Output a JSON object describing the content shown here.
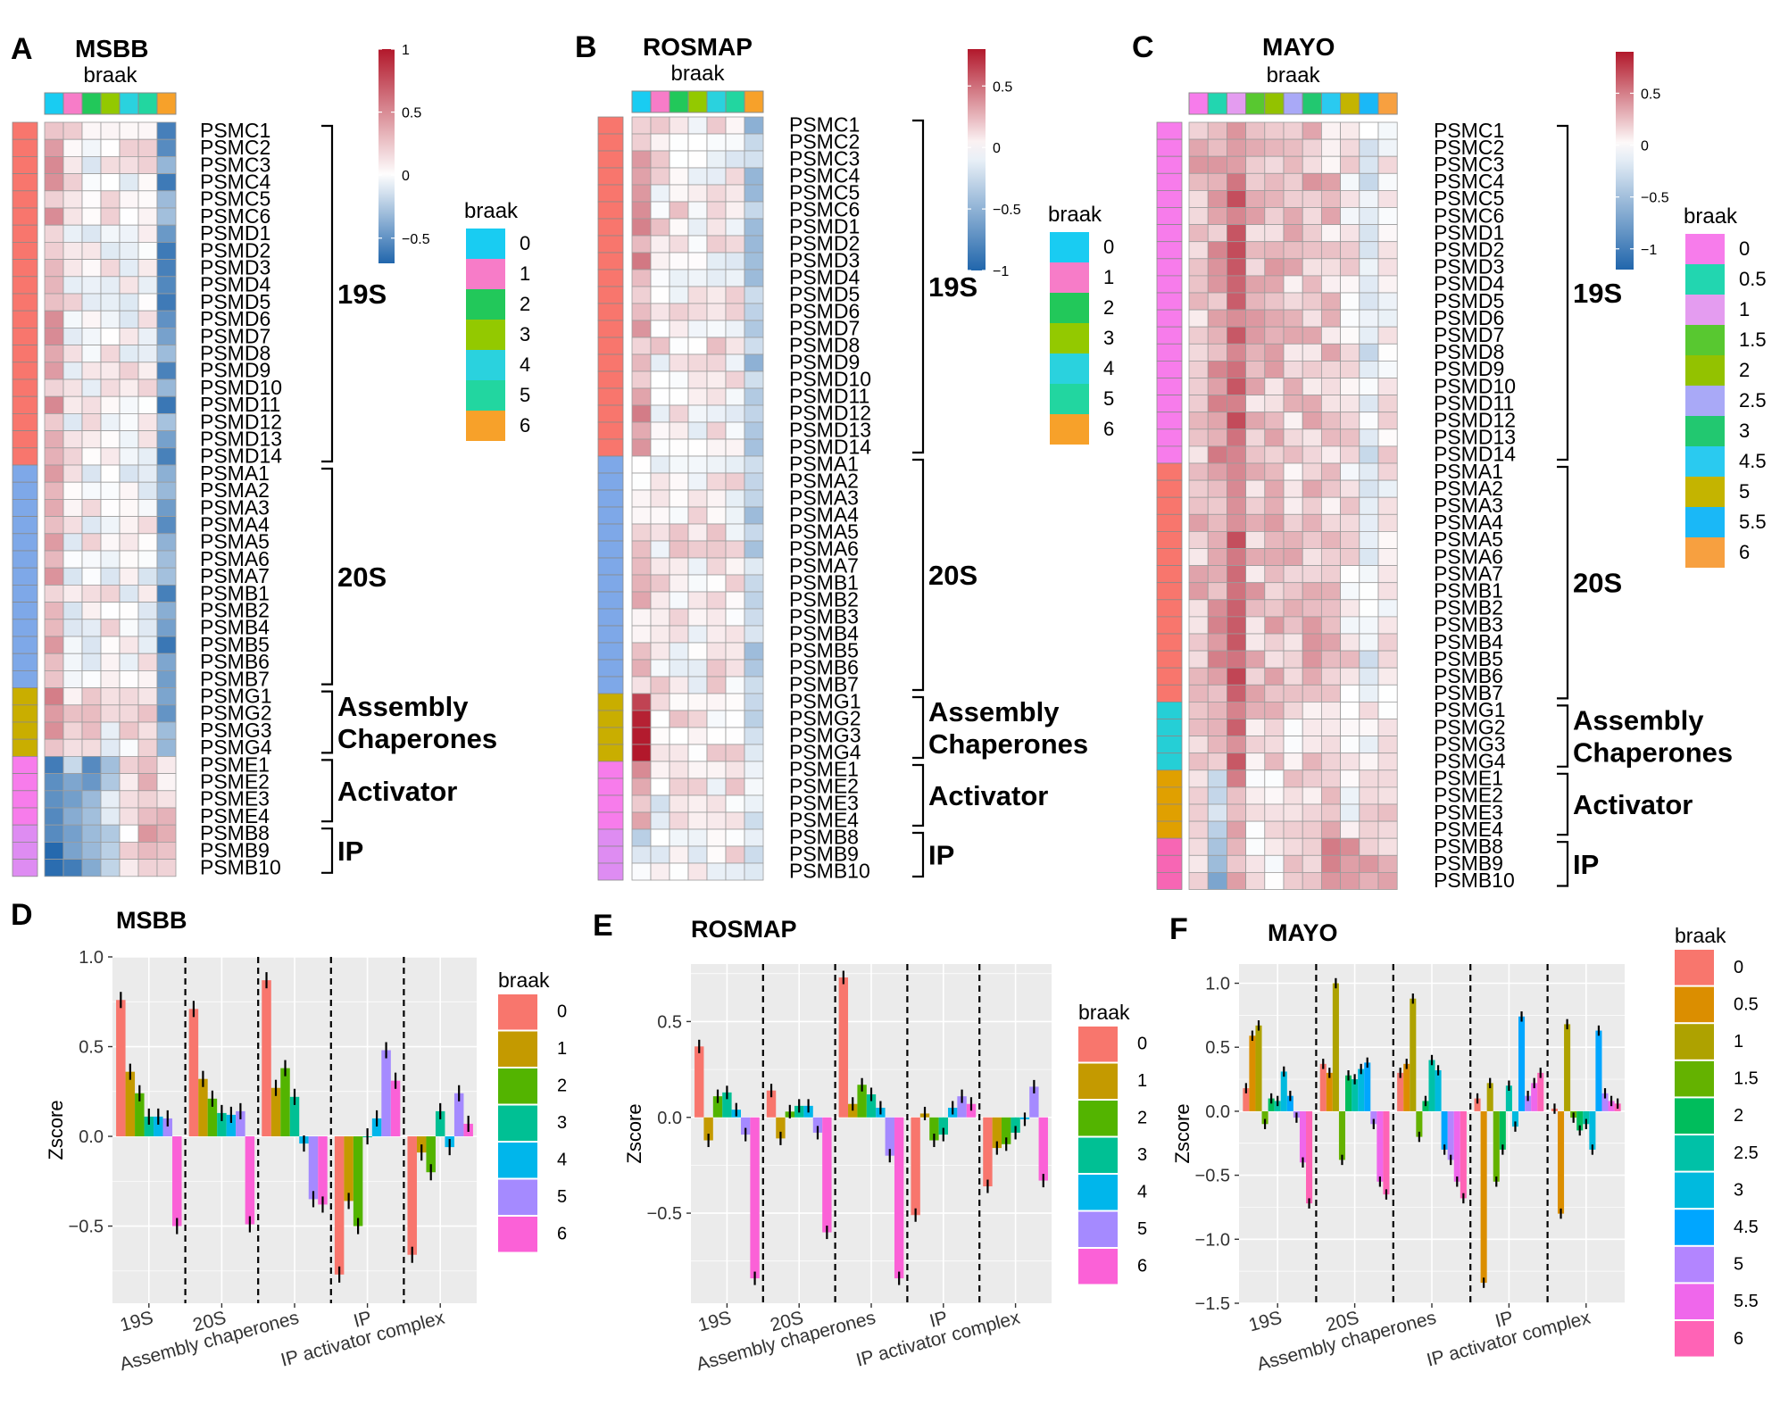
{
  "figure": {
    "heatmap_order_note": "rows listed in display order",
    "colorbar_label": "braak",
    "zscore_label": "Zscore",
    "legend_title": "braak"
  },
  "chart_data": [
    {
      "type": "heatmap",
      "panel": "A",
      "title": "MSBB",
      "column_annotation_title": "braak",
      "columns": [
        "0",
        "1",
        "2",
        "3",
        "4",
        "5",
        "6"
      ],
      "colorbar": {
        "range": [
          -0.7,
          1.0
        ],
        "ticks": [
          1,
          0.5,
          0,
          -0.5
        ],
        "tick_labels": [
          "1",
          "0.5",
          "0",
          "−0.5"
        ]
      },
      "rows": [
        "PSMC1",
        "PSMC2",
        "PSMC3",
        "PSMC4",
        "PSMC5",
        "PSMC6",
        "PSMD1",
        "PSMD2",
        "PSMD3",
        "PSMD4",
        "PSMD5",
        "PSMD6",
        "PSMD7",
        "PSMD8",
        "PSMD9",
        "PSMD10",
        "PSMD11",
        "PSMD12",
        "PSMD13",
        "PSMD14",
        "PSMA1",
        "PSMA2",
        "PSMA3",
        "PSMA4",
        "PSMA5",
        "PSMA6",
        "PSMA7",
        "PSMB1",
        "PSMB2",
        "PSMB4",
        "PSMB5",
        "PSMB6",
        "PSMB7",
        "PSMG1",
        "PSMG2",
        "PSMG3",
        "PSMG4",
        "PSME1",
        "PSME2",
        "PSME3",
        "PSME4",
        "PSMB8",
        "PSMB9",
        "PSMB10"
      ],
      "groups": [
        {
          "label": "19S",
          "label_lines": [
            "19S"
          ],
          "start": 0,
          "end": 19,
          "row_color": "#F8766D"
        },
        {
          "label": "20S",
          "label_lines": [
            "20S"
          ],
          "start": 20,
          "end": 32,
          "row_color": "#7EA8E8"
        },
        {
          "label": "Assembly Chaperones",
          "label_lines": [
            "Assembly",
            "Chaperones"
          ],
          "start": 33,
          "end": 36,
          "row_color": "#C9AE00"
        },
        {
          "label": "Activator",
          "label_lines": [
            "Activator"
          ],
          "start": 37,
          "end": 40,
          "row_color": "#F77CEB"
        },
        {
          "label": "IP",
          "label_lines": [
            "IP"
          ],
          "start": 41,
          "end": 43,
          "row_color": "#DE8CF2"
        }
      ],
      "group_level_profile": [
        [
          0.35,
          0.05,
          0.05,
          0.05,
          0.05,
          0.05,
          -0.45
        ],
        [
          0.3,
          0.05,
          0.05,
          0.05,
          0.0,
          0.05,
          -0.45
        ],
        [
          0.4,
          0.1,
          0.15,
          0.0,
          0.1,
          0.15,
          -0.45
        ],
        [
          -0.45,
          -0.35,
          -0.45,
          -0.2,
          0.1,
          0.2,
          0.2
        ],
        [
          -0.6,
          -0.45,
          -0.35,
          -0.1,
          0.05,
          0.3,
          0.25
        ]
      ]
    },
    {
      "type": "heatmap",
      "panel": "B",
      "title": "ROSMAP",
      "column_annotation_title": "braak",
      "columns": [
        "0",
        "1",
        "2",
        "3",
        "4",
        "5",
        "6"
      ],
      "colorbar": {
        "range": [
          -1.0,
          0.8
        ],
        "ticks": [
          0.5,
          0,
          -0.5,
          -1
        ],
        "tick_labels": [
          "0.5",
          "0",
          "−0.5",
          "−1"
        ]
      },
      "rows": [
        "PSMC1",
        "PSMC2",
        "PSMC3",
        "PSMC4",
        "PSMC5",
        "PSMC6",
        "PSMD1",
        "PSMD2",
        "PSMD3",
        "PSMD4",
        "PSMD5",
        "PSMD6",
        "PSMD7",
        "PSMD8",
        "PSMD9",
        "PSMD10",
        "PSMD11",
        "PSMD12",
        "PSMD13",
        "PSMD14",
        "PSMA1",
        "PSMA2",
        "PSMA3",
        "PSMA4",
        "PSMA5",
        "PSMA6",
        "PSMA7",
        "PSMB1",
        "PSMB2",
        "PSMB3",
        "PSMB4",
        "PSMB5",
        "PSMB6",
        "PSMB7",
        "PSMG1",
        "PSMG2",
        "PSMG3",
        "PSMG4",
        "PSME1",
        "PSME2",
        "PSME3",
        "PSME4",
        "PSMB8",
        "PSMB9",
        "PSMB10"
      ],
      "groups": [
        {
          "label": "19S",
          "label_lines": [
            "19S"
          ],
          "start": 0,
          "end": 19,
          "row_color": "#F8766D"
        },
        {
          "label": "20S",
          "label_lines": [
            "20S"
          ],
          "start": 20,
          "end": 33,
          "row_color": "#7EA8E8"
        },
        {
          "label": "Assembly Chaperones",
          "label_lines": [
            "Assembly",
            "Chaperones"
          ],
          "start": 34,
          "end": 37,
          "row_color": "#C9AE00"
        },
        {
          "label": "Activator",
          "label_lines": [
            "Activator"
          ],
          "start": 38,
          "end": 41,
          "row_color": "#F77CEB"
        },
        {
          "label": "IP",
          "label_lines": [
            "IP"
          ],
          "start": 42,
          "end": 44,
          "row_color": "#DE8CF2"
        }
      ],
      "group_level_profile": [
        [
          0.3,
          0.05,
          0.05,
          0.05,
          0.05,
          0.0,
          -0.35
        ],
        [
          0.15,
          0.05,
          0.05,
          0.05,
          0.05,
          0.05,
          -0.3
        ],
        [
          0.7,
          0.05,
          0.1,
          0.05,
          0.05,
          0.05,
          -0.25
        ],
        [
          0.25,
          -0.05,
          0.0,
          0.0,
          0.0,
          0.05,
          -0.2
        ],
        [
          -0.15,
          -0.05,
          0.0,
          0.0,
          0.0,
          0.05,
          -0.15
        ]
      ]
    },
    {
      "type": "heatmap",
      "panel": "C",
      "title": "MAYO",
      "column_annotation_title": "braak",
      "columns": [
        "0",
        "0.5",
        "1",
        "1.5",
        "2",
        "2.5",
        "3",
        "4.5",
        "5",
        "5.5",
        "6"
      ],
      "colorbar": {
        "range": [
          -1.2,
          0.9
        ],
        "ticks": [
          0.5,
          0,
          -0.5,
          -1
        ],
        "tick_labels": [
          "0.5",
          "0",
          "−0.5",
          "−1"
        ]
      },
      "rows": [
        "PSMC1",
        "PSMC2",
        "PSMC3",
        "PSMC4",
        "PSMC5",
        "PSMC6",
        "PSMD1",
        "PSMD2",
        "PSMD3",
        "PSMD4",
        "PSMD5",
        "PSMD6",
        "PSMD7",
        "PSMD8",
        "PSMD9",
        "PSMD10",
        "PSMD11",
        "PSMD12",
        "PSMD13",
        "PSMD14",
        "PSMA1",
        "PSMA2",
        "PSMA3",
        "PSMA4",
        "PSMA5",
        "PSMA6",
        "PSMA7",
        "PSMB1",
        "PSMB2",
        "PSMB3",
        "PSMB4",
        "PSMB5",
        "PSMB6",
        "PSMB7",
        "PSMG1",
        "PSMG2",
        "PSMG3",
        "PSMG4",
        "PSME1",
        "PSME2",
        "PSME3",
        "PSME4",
        "PSMB8",
        "PSMB9",
        "PSMB10"
      ],
      "groups": [
        {
          "label": "19S",
          "label_lines": [
            "19S"
          ],
          "start": 0,
          "end": 19,
          "row_color": "#F77CEB"
        },
        {
          "label": "20S",
          "label_lines": [
            "20S"
          ],
          "start": 20,
          "end": 33,
          "row_color": "#F8766D"
        },
        {
          "label": "Assembly Chaperones",
          "label_lines": [
            "Assembly",
            "Chaperones"
          ],
          "start": 34,
          "end": 37,
          "row_color": "#25CFD6"
        },
        {
          "label": "Activator",
          "label_lines": [
            "Activator"
          ],
          "start": 38,
          "end": 41,
          "row_color": "#E0A000"
        },
        {
          "label": "IP",
          "label_lines": [
            "IP"
          ],
          "start": 42,
          "end": 44,
          "row_color": "#F766B4"
        }
      ],
      "group_level_profile": [
        [
          0.25,
          0.35,
          0.55,
          0.25,
          0.25,
          0.2,
          0.25,
          0.2,
          0.1,
          -0.15,
          0.05
        ],
        [
          0.25,
          0.35,
          0.6,
          0.25,
          0.25,
          0.2,
          0.25,
          0.2,
          0.1,
          -0.1,
          0.05
        ],
        [
          0.2,
          0.2,
          0.6,
          0.15,
          0.2,
          0.1,
          0.2,
          0.15,
          0.05,
          0.0,
          0.0
        ],
        [
          0.05,
          -0.2,
          0.4,
          0.1,
          0.05,
          0.15,
          0.2,
          0.35,
          0.0,
          0.1,
          0.1
        ],
        [
          0.1,
          -0.6,
          0.35,
          0.05,
          0.05,
          0.1,
          0.2,
          0.4,
          0.3,
          0.25,
          0.25
        ]
      ]
    },
    {
      "type": "bar",
      "panel": "D",
      "title": "MSBB",
      "categories": [
        "19S",
        "20S",
        "Assembly chaperones",
        "IP",
        "IP activator complex"
      ],
      "ylabel": "Zscore",
      "ylim": [
        -0.93,
        1.0
      ],
      "yticks": [
        1.0,
        0.5,
        0.0,
        -0.5
      ],
      "ytick_labels": [
        "1.0",
        "0.5",
        "0.0",
        "−0.5"
      ],
      "legend_title": "braak",
      "series": [
        {
          "name": "0",
          "color": "#F8766D",
          "values": [
            0.76,
            0.71,
            0.87,
            -0.77,
            -0.66
          ]
        },
        {
          "name": "1",
          "color": "#C49A00",
          "values": [
            0.36,
            0.32,
            0.27,
            -0.36,
            -0.09
          ]
        },
        {
          "name": "2",
          "color": "#53B400",
          "values": [
            0.24,
            0.21,
            0.38,
            -0.5,
            -0.2
          ]
        },
        {
          "name": "3",
          "color": "#00C094",
          "values": [
            0.11,
            0.13,
            0.22,
            0.0,
            0.14
          ]
        },
        {
          "name": "4",
          "color": "#00B6EB",
          "values": [
            0.11,
            0.12,
            -0.04,
            0.1,
            -0.06
          ]
        },
        {
          "name": "5",
          "color": "#A58AFF",
          "values": [
            0.1,
            0.14,
            -0.35,
            0.48,
            0.24
          ]
        },
        {
          "name": "6",
          "color": "#FB61D7",
          "values": [
            -0.5,
            -0.49,
            -0.38,
            0.31,
            0.07
          ]
        }
      ],
      "errors": 0.045
    },
    {
      "type": "bar",
      "panel": "E",
      "title": "ROSMAP",
      "categories": [
        "19S",
        "20S",
        "Assembly chaperones",
        "IP",
        "IP activator complex"
      ],
      "ylabel": "Zscore",
      "ylim": [
        -0.97,
        0.8
      ],
      "yticks": [
        0.5,
        0.0,
        -0.5
      ],
      "ytick_labels": [
        "0.5",
        "0.0",
        "−0.5"
      ],
      "legend_title": "braak",
      "series": [
        {
          "name": "0",
          "color": "#F8766D",
          "values": [
            0.37,
            0.14,
            0.73,
            -0.51,
            -0.36
          ]
        },
        {
          "name": "1",
          "color": "#C49A00",
          "values": [
            -0.12,
            -0.11,
            0.07,
            0.02,
            -0.16
          ]
        },
        {
          "name": "2",
          "color": "#53B400",
          "values": [
            0.11,
            0.03,
            0.17,
            -0.12,
            -0.14
          ]
        },
        {
          "name": "3",
          "color": "#00C094",
          "values": [
            0.13,
            0.06,
            0.12,
            -0.09,
            -0.08
          ]
        },
        {
          "name": "4",
          "color": "#00B6EB",
          "values": [
            0.04,
            0.06,
            0.05,
            0.05,
            -0.01
          ]
        },
        {
          "name": "5",
          "color": "#A58AFF",
          "values": [
            -0.09,
            -0.08,
            -0.2,
            0.11,
            0.16
          ]
        },
        {
          "name": "6",
          "color": "#FB61D7",
          "values": [
            -0.84,
            -0.6,
            -0.84,
            0.07,
            -0.33
          ]
        }
      ],
      "errors": 0.035
    },
    {
      "type": "bar",
      "panel": "F",
      "title": "MAYO",
      "categories": [
        "19S",
        "20S",
        "Assembly chaperones",
        "IP",
        "IP activator complex"
      ],
      "ylabel": "Zscore",
      "ylim": [
        -1.5,
        1.15
      ],
      "yticks": [
        1.0,
        0.5,
        0.0,
        -0.5,
        -1.0,
        -1.5
      ],
      "ytick_labels": [
        "1.0",
        "0.5",
        "0.0",
        "−0.5",
        "−1.0",
        "−1.5"
      ],
      "legend_title": "braak",
      "series": [
        {
          "name": "0",
          "color": "#F8766D",
          "values": [
            0.18,
            0.37,
            0.3,
            0.1,
            0.02
          ]
        },
        {
          "name": "0.5",
          "color": "#DB8E00",
          "values": [
            0.59,
            0.3,
            0.37,
            -1.34,
            -0.8
          ]
        },
        {
          "name": "1",
          "color": "#AEA200",
          "values": [
            0.67,
            1.0,
            0.88,
            0.22,
            0.68
          ]
        },
        {
          "name": "1.5",
          "color": "#64B200",
          "values": [
            -0.1,
            -0.38,
            -0.2,
            -0.55,
            -0.05
          ]
        },
        {
          "name": "2",
          "color": "#00BD5C",
          "values": [
            0.1,
            0.28,
            0.08,
            -0.3,
            -0.15
          ]
        },
        {
          "name": "2.5",
          "color": "#00C1A7",
          "values": [
            0.08,
            0.25,
            0.4,
            0.2,
            -0.1
          ]
        },
        {
          "name": "3",
          "color": "#00BADE",
          "values": [
            0.31,
            0.33,
            0.32,
            -0.12,
            -0.3
          ]
        },
        {
          "name": "4.5",
          "color": "#00A6FF",
          "values": [
            0.12,
            0.38,
            -0.3,
            0.74,
            0.63
          ]
        },
        {
          "name": "5",
          "color": "#B385FF",
          "values": [
            -0.05,
            -0.1,
            -0.38,
            0.12,
            0.14
          ]
        },
        {
          "name": "5.5",
          "color": "#EF67EB",
          "values": [
            -0.4,
            -0.55,
            -0.55,
            0.22,
            0.08
          ]
        },
        {
          "name": "6",
          "color": "#FF63B6",
          "values": [
            -0.72,
            -0.65,
            -0.68,
            0.3,
            0.06
          ]
        }
      ],
      "errors": 0.04
    }
  ]
}
